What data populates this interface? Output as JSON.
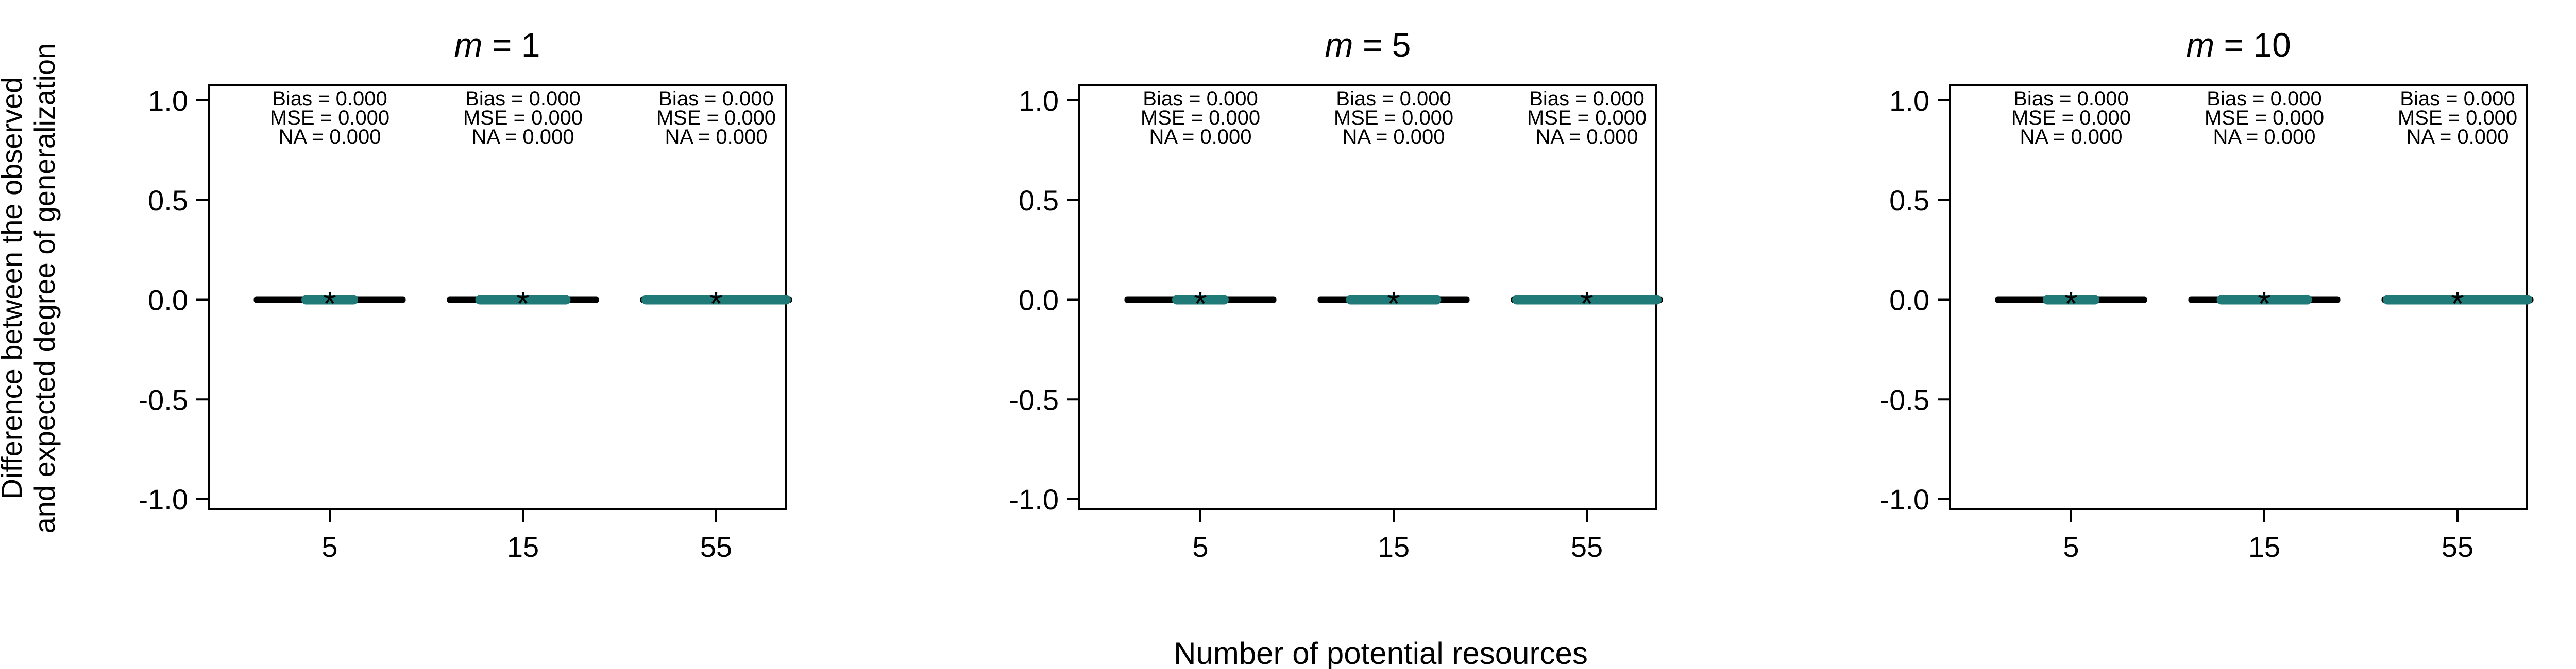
{
  "figure": {
    "ylabel_line1": "Difference between the observed",
    "ylabel_line2": "and expected degree of generalization",
    "xlabel": "Number of potential resources"
  },
  "colors": {
    "outer_line": "#000000",
    "inner_box": "#1f7a78",
    "median_star": "#000000",
    "axis": "#000000"
  },
  "chart_data": [
    {
      "type": "box",
      "title_var": "m",
      "title_eq": " = 1",
      "categories": [
        "5",
        "15",
        "55"
      ],
      "yticks": [
        "1.0",
        "0.5",
        "0.0",
        "-0.5",
        "-1.0"
      ],
      "ylim": [
        -1.0,
        1.0
      ],
      "series": [
        {
          "category": "5",
          "min": 0.0,
          "q1": 0.0,
          "median": 0.0,
          "q3": 0.0,
          "max": 0.0,
          "bias": "Bias = 0.000",
          "mse": "MSE = 0.000",
          "na": "NA = 0.000"
        },
        {
          "category": "15",
          "min": 0.0,
          "q1": 0.0,
          "median": 0.0,
          "q3": 0.0,
          "max": 0.0,
          "bias": "Bias = 0.000",
          "mse": "MSE = 0.000",
          "na": "NA = 0.000"
        },
        {
          "category": "55",
          "min": 0.0,
          "q1": 0.0,
          "median": 0.0,
          "q3": 0.0,
          "max": 0.0,
          "bias": "Bias = 0.000",
          "mse": "MSE = 0.000",
          "na": "NA = 0.000"
        }
      ]
    },
    {
      "type": "box",
      "title_var": "m",
      "title_eq": " = 5",
      "categories": [
        "5",
        "15",
        "55"
      ],
      "yticks": [
        "1.0",
        "0.5",
        "0.0",
        "-0.5",
        "-1.0"
      ],
      "ylim": [
        -1.0,
        1.0
      ],
      "series": [
        {
          "category": "5",
          "min": 0.0,
          "q1": 0.0,
          "median": 0.0,
          "q3": 0.0,
          "max": 0.0,
          "bias": "Bias = 0.000",
          "mse": "MSE = 0.000",
          "na": "NA = 0.000"
        },
        {
          "category": "15",
          "min": 0.0,
          "q1": 0.0,
          "median": 0.0,
          "q3": 0.0,
          "max": 0.0,
          "bias": "Bias = 0.000",
          "mse": "MSE = 0.000",
          "na": "NA = 0.000"
        },
        {
          "category": "55",
          "min": 0.0,
          "q1": 0.0,
          "median": 0.0,
          "q3": 0.0,
          "max": 0.0,
          "bias": "Bias = 0.000",
          "mse": "MSE = 0.000",
          "na": "NA = 0.000"
        }
      ]
    },
    {
      "type": "box",
      "title_var": "m",
      "title_eq": " = 10",
      "categories": [
        "5",
        "15",
        "55"
      ],
      "yticks": [
        "1.0",
        "0.5",
        "0.0",
        "-0.5",
        "-1.0"
      ],
      "ylim": [
        -1.0,
        1.0
      ],
      "series": [
        {
          "category": "5",
          "min": 0.0,
          "q1": 0.0,
          "median": 0.0,
          "q3": 0.0,
          "max": 0.0,
          "bias": "Bias = 0.000",
          "mse": "MSE = 0.000",
          "na": "NA = 0.000"
        },
        {
          "category": "15",
          "min": 0.0,
          "q1": 0.0,
          "median": 0.0,
          "q3": 0.0,
          "max": 0.0,
          "bias": "Bias = 0.000",
          "mse": "MSE = 0.000",
          "na": "NA = 0.000"
        },
        {
          "category": "55",
          "min": 0.0,
          "q1": 0.0,
          "median": 0.0,
          "q3": 0.0,
          "max": 0.0,
          "bias": "Bias = 0.000",
          "mse": "MSE = 0.000",
          "na": "NA = 0.000"
        }
      ]
    }
  ]
}
